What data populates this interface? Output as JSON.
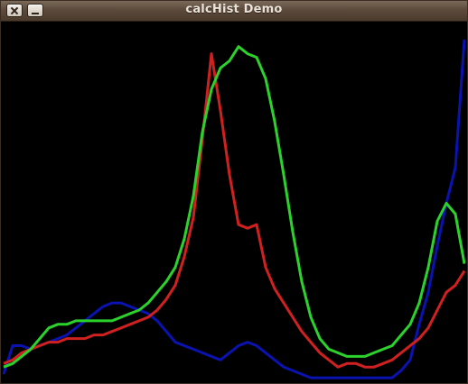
{
  "window": {
    "title": "calcHist Demo",
    "buttons": [
      "close-button",
      "minimize-button"
    ]
  },
  "chart_data": {
    "type": "line",
    "title": "",
    "xlabel": "",
    "ylabel": "",
    "xlim": [
      0,
      255
    ],
    "ylim": [
      0,
      100
    ],
    "grid": false,
    "background": "#000000",
    "x": [
      0,
      5,
      10,
      15,
      20,
      25,
      30,
      35,
      40,
      45,
      50,
      55,
      60,
      65,
      70,
      75,
      80,
      85,
      90,
      95,
      100,
      105,
      110,
      115,
      120,
      125,
      130,
      135,
      140,
      145,
      150,
      155,
      160,
      165,
      170,
      175,
      180,
      185,
      190,
      195,
      200,
      205,
      210,
      215,
      220,
      225,
      230,
      235,
      240,
      245,
      250,
      255
    ],
    "series": [
      {
        "color": "#0a12b0",
        "values": [
          2,
          10,
          10,
          9,
          10,
          11,
          12,
          13,
          15,
          17,
          19,
          21,
          22,
          22,
          21,
          20,
          19,
          17,
          14,
          11,
          10,
          9,
          8,
          7,
          6,
          8,
          10,
          11,
          10,
          8,
          6,
          4,
          3,
          2,
          1,
          1,
          1,
          1,
          1,
          1,
          1,
          1,
          1,
          1,
          3,
          6,
          16,
          25,
          38,
          50,
          60,
          96
        ]
      },
      {
        "color": "#d02020",
        "values": [
          5,
          6,
          8,
          9,
          10,
          11,
          11,
          12,
          12,
          12,
          13,
          13,
          14,
          15,
          16,
          17,
          18,
          20,
          23,
          27,
          35,
          46,
          68,
          92,
          76,
          58,
          44,
          43,
          44,
          32,
          26,
          22,
          18,
          14,
          11,
          8,
          6,
          4,
          5,
          5,
          4,
          4,
          5,
          6,
          8,
          10,
          12,
          15,
          20,
          25,
          27,
          31
        ]
      },
      {
        "color": "#2cd22c",
        "values": [
          4,
          5,
          7,
          9,
          12,
          15,
          16,
          16,
          17,
          17,
          17,
          17,
          17,
          18,
          19,
          20,
          22,
          25,
          28,
          32,
          40,
          52,
          70,
          82,
          88,
          90,
          94,
          92,
          91,
          85,
          73,
          58,
          42,
          28,
          18,
          12,
          9,
          8,
          7,
          7,
          7,
          8,
          9,
          10,
          13,
          16,
          22,
          32,
          45,
          50,
          47,
          33
        ]
      }
    ]
  }
}
